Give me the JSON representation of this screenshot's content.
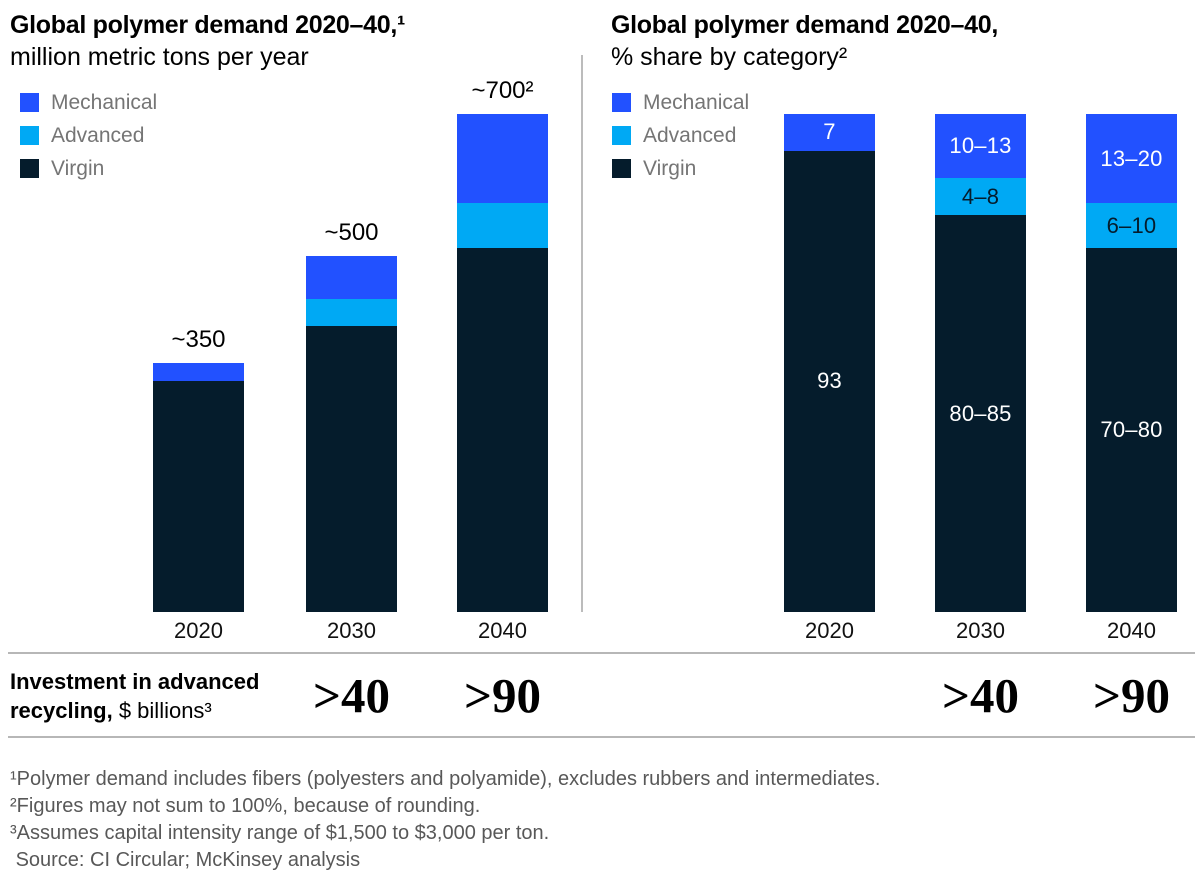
{
  "page": {
    "background": "#ffffff"
  },
  "chart_data": [
    {
      "type": "bar",
      "stacked": true,
      "title": "Global polymer demand 2020–40,¹",
      "subtitle": "million metric tons per year",
      "categories": [
        "2020",
        "2030",
        "2040"
      ],
      "ylim": [
        0,
        700
      ],
      "grid": false,
      "legend_position": "top-left",
      "total_labels": [
        "~350",
        "~500",
        "~700²"
      ],
      "series": [
        {
          "name": "Mechanical",
          "color": "#2251ff",
          "values": [
            25,
            60,
            125
          ]
        },
        {
          "name": "Advanced",
          "color": "#00a9f4",
          "values": [
            0,
            38,
            63
          ]
        },
        {
          "name": "Virgin",
          "color": "#051c2c",
          "values": [
            325,
            402,
            512
          ]
        }
      ]
    },
    {
      "type": "bar",
      "stacked": true,
      "normalized": "percent",
      "title": "Global polymer demand 2020–40,",
      "subtitle": "% share by category²",
      "categories": [
        "2020",
        "2030",
        "2040"
      ],
      "ylim": [
        0,
        100
      ],
      "grid": false,
      "legend_position": "top-left",
      "series": [
        {
          "name": "Mechanical",
          "color": "#2251ff",
          "values": [
            7.4,
            12.9,
            17.9
          ],
          "labels": [
            "7",
            "10–13",
            "13–20"
          ],
          "label_color": "#ffffff"
        },
        {
          "name": "Advanced",
          "color": "#00a9f4",
          "values": [
            0,
            7.4,
            9
          ],
          "labels": [
            "",
            "4–8",
            "6–10"
          ],
          "label_color": "#051c2c"
        },
        {
          "name": "Virgin",
          "color": "#051c2c",
          "values": [
            92.6,
            79.7,
            73.1
          ],
          "labels": [
            "93",
            "80–85",
            "70–80"
          ],
          "label_color": "#ffffff"
        }
      ]
    }
  ],
  "investment": {
    "label_bold": "Investment in advanced recycling,",
    "label_regular": " $ billions³",
    "values": [
      {
        "chart": 0,
        "category": "2030",
        "text": ">40"
      },
      {
        "chart": 0,
        "category": "2040",
        "text": ">90"
      },
      {
        "chart": 1,
        "category": "2030",
        "text": ">40"
      },
      {
        "chart": 1,
        "category": "2040",
        "text": ">90"
      }
    ]
  },
  "footnotes": [
    "¹Polymer demand includes fibers (polyesters and polyamide), excludes rubbers and intermediates.",
    "²Figures may not sum to 100%, because of rounding.",
    "³Assumes capital intensity range of $1,500 to $3,000 per ton.",
    " Source: CI Circular; McKinsey analysis"
  ],
  "colors": {
    "mechanical_blue": "#2251ff",
    "advanced_cyan": "#00a9f4",
    "virgin_navy": "#051c2c",
    "rule_gray": "#b7b7b7",
    "legend_text_gray": "#757575",
    "footnote_gray": "#585858"
  }
}
